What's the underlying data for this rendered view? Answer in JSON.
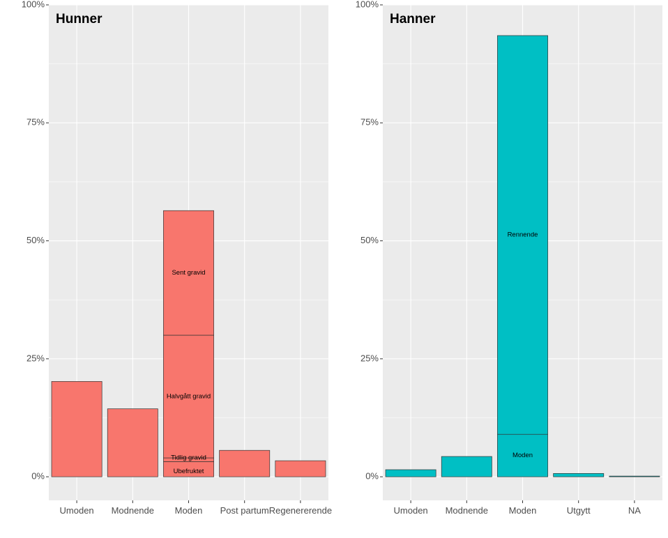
{
  "chart_data": [
    {
      "type": "bar",
      "stacked": true,
      "title": "Hunner",
      "color": "#F8766D",
      "categories": [
        "Umoden",
        "Modnende",
        "Moden",
        "Post partum",
        "Regenererende"
      ],
      "stacks": [
        [
          {
            "label": "",
            "value": 20.2
          }
        ],
        [
          {
            "label": "",
            "value": 14.4
          }
        ],
        [
          {
            "label": "Ubefruktet",
            "value": 3.2
          },
          {
            "label": "Tidlig gravid",
            "value": 0.8
          },
          {
            "label": "Halvgått gravid",
            "value": 26.0
          },
          {
            "label": "Sent gravid",
            "value": 26.4
          }
        ],
        [
          {
            "label": "",
            "value": 5.6
          }
        ],
        [
          {
            "label": "",
            "value": 3.4
          }
        ]
      ],
      "ylim": [
        -5,
        100
      ],
      "yticks": [
        0,
        25,
        50,
        75,
        100
      ],
      "ytick_labels": [
        "0%",
        "25%",
        "50%",
        "75%",
        "100%"
      ],
      "xlabel": "",
      "ylabel": ""
    },
    {
      "type": "bar",
      "stacked": true,
      "title": "Hanner",
      "color": "#00BFC4",
      "categories": [
        "Umoden",
        "Modnende",
        "Moden",
        "Utgytt",
        "NA"
      ],
      "stacks": [
        [
          {
            "label": "",
            "value": 1.5
          }
        ],
        [
          {
            "label": "",
            "value": 4.3
          }
        ],
        [
          {
            "label": "Moden",
            "value": 9.0
          },
          {
            "label": "Rennende",
            "value": 84.5
          }
        ],
        [
          {
            "label": "",
            "value": 0.7
          }
        ],
        [
          {
            "label": "",
            "value": 0.15
          }
        ]
      ],
      "ylim": [
        -5,
        100
      ],
      "yticks": [
        0,
        25,
        50,
        75,
        100
      ],
      "ytick_labels": [
        "0%",
        "25%",
        "50%",
        "75%",
        "100%"
      ],
      "xlabel": "",
      "ylabel": ""
    }
  ]
}
